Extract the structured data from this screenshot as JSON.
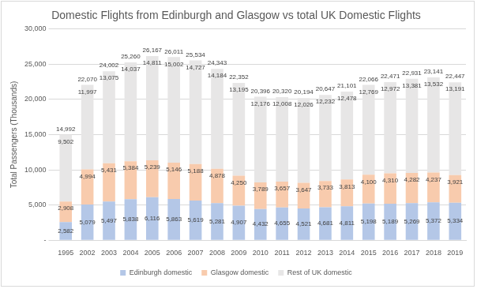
{
  "chart_data": {
    "type": "bar",
    "title": "Domestic Flights from Edinburgh and Glasgow vs total UK Domestic Flights",
    "y_label": "Total Passengers (Thousands)",
    "categories": [
      "1995",
      "2002",
      "2003",
      "2004",
      "2005",
      "2006",
      "2007",
      "2008",
      "2009",
      "2010",
      "2011",
      "2012",
      "2013",
      "2014",
      "2015",
      "2016",
      "2017",
      "2018",
      "2019"
    ],
    "series": [
      {
        "name": "Edinburgh domestic",
        "color": "#b4c7e7",
        "values": [
          2582,
          5079,
          5497,
          5838,
          6116,
          5863,
          5619,
          5281,
          4907,
          4432,
          4655,
          4521,
          4681,
          4811,
          5198,
          5189,
          5269,
          5372,
          5334
        ],
        "value_labels": [
          "2,582",
          "5,079",
          "5,497",
          "5,838",
          "6,116",
          "5,863",
          "5,619",
          "5,281",
          "4,907",
          "4,432",
          "4,655",
          "4,521",
          "4,681",
          "4,811",
          "5,198",
          "5,189",
          "5,269",
          "5,372",
          "5,334"
        ]
      },
      {
        "name": "Glasgow domestic",
        "color": "#f8cbad",
        "values": [
          2908,
          4994,
          5431,
          5384,
          5239,
          5146,
          5188,
          4878,
          4250,
          3789,
          3657,
          3647,
          3733,
          3813,
          4100,
          4310,
          4282,
          4237,
          3921
        ],
        "value_labels": [
          "2,908",
          "4,994",
          "5,431",
          "5,384",
          "5,239",
          "5,146",
          "5,188",
          "4,878",
          "4,250",
          "3,789",
          "3,657",
          "3,647",
          "3,733",
          "3,813",
          "4,100",
          "4,310",
          "4,282",
          "4,237",
          "3,921"
        ]
      },
      {
        "name": "Rest of UK domestic",
        "color": "#e7e6e6",
        "values": [
          9502,
          11997,
          13075,
          14037,
          14811,
          15002,
          14727,
          14184,
          13195,
          12176,
          12008,
          12026,
          12232,
          12478,
          12769,
          12972,
          13381,
          13532,
          13191
        ],
        "value_labels": [
          "9,502",
          "11,997",
          "13,075",
          "14,037",
          "14,811",
          "15,002",
          "14,727",
          "14,184",
          "13,195",
          "12,176",
          "12,008",
          "12,026",
          "12,232",
          "12,478",
          "12,769",
          "12,972",
          "13,381",
          "13,532",
          "13,191"
        ]
      }
    ],
    "totals": {
      "values": [
        14992,
        22070,
        24002,
        25260,
        26167,
        26011,
        25534,
        24343,
        22352,
        20396,
        20320,
        20194,
        20647,
        21101,
        22066,
        22471,
        22931,
        23141,
        22447
      ],
      "value_labels": [
        "14,992",
        "22,070",
        "24,002",
        "25,260",
        "26,167",
        "26,011",
        "25,534",
        "24,343",
        "22,352",
        "20,396",
        "20,320",
        "20,194",
        "20,647",
        "21,101",
        "22,066",
        "22,471",
        "22,931",
        "23,141",
        "22,447"
      ]
    },
    "ylim": [
      0,
      30000
    ],
    "yticks": [
      {
        "value": 0,
        "label": "-"
      },
      {
        "value": 5000,
        "label": "5,000"
      },
      {
        "value": 10000,
        "label": "10,000"
      },
      {
        "value": 15000,
        "label": "15,000"
      },
      {
        "value": 20000,
        "label": "20,000"
      },
      {
        "value": 25000,
        "label": "25,000"
      },
      {
        "value": 30000,
        "label": "30,000"
      }
    ],
    "stacked": true,
    "grid": true,
    "legend": "bottom",
    "data_labels": true
  }
}
